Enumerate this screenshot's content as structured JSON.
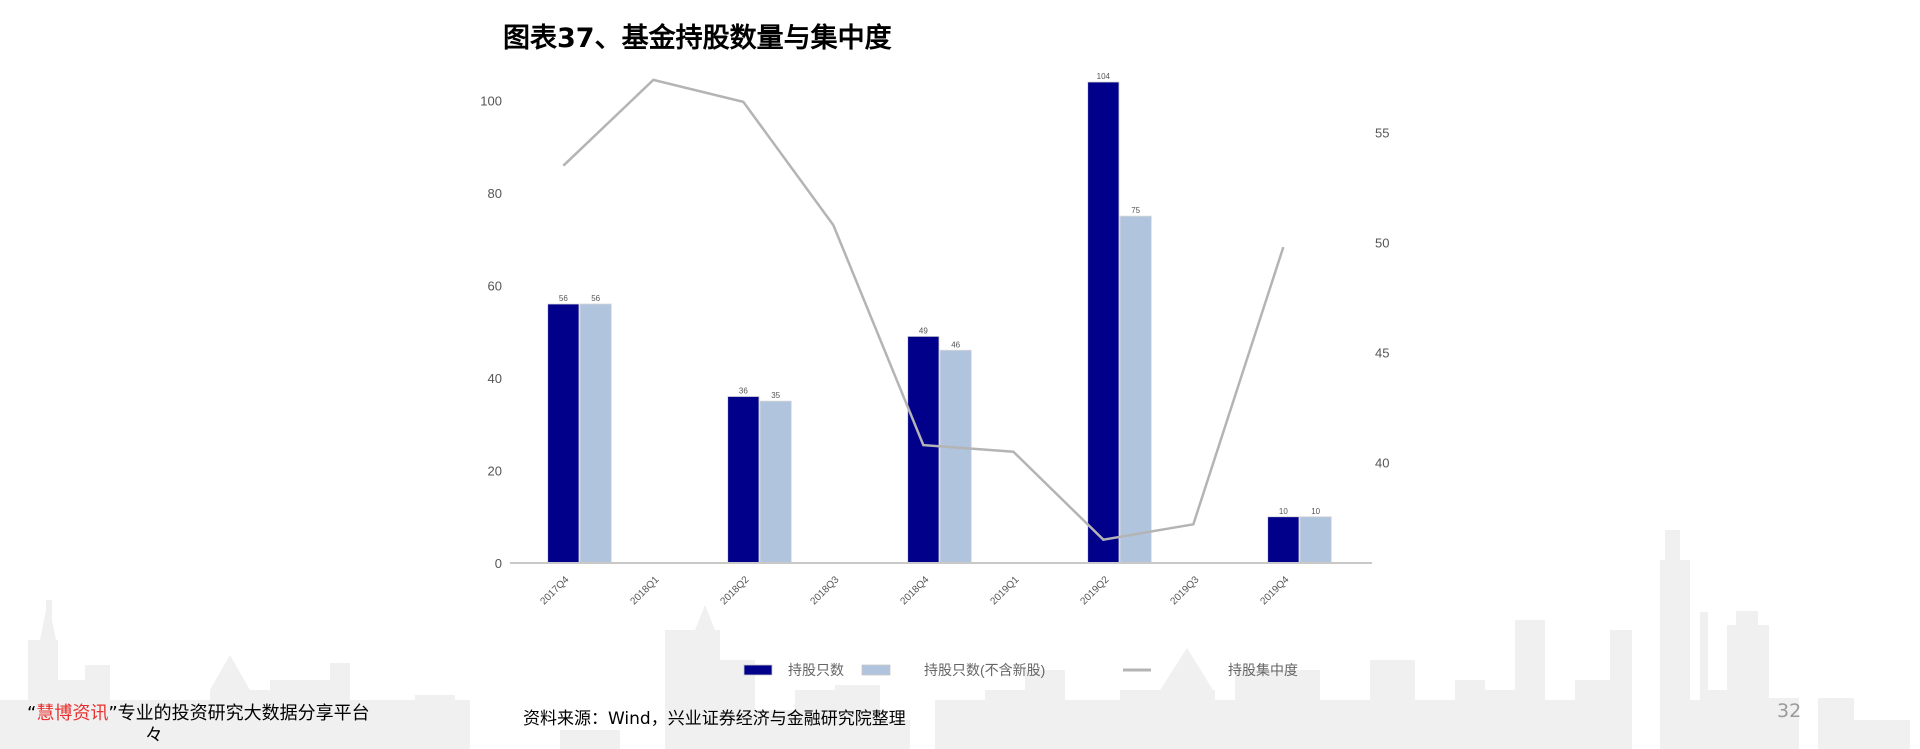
{
  "title": "图表37、基金持股数量与集中度",
  "chart_data": {
    "type": "bar",
    "title": "图表37、基金持股数量与集中度",
    "categories": [
      "2017Q4",
      "2018Q1",
      "2018Q2",
      "2018Q3",
      "2018Q4",
      "2019Q1",
      "2019Q2",
      "2019Q3",
      "2019Q4"
    ],
    "series": [
      {
        "name": "持股只数",
        "type": "bar",
        "axis": "left",
        "color": "#00008b",
        "values": [
          56,
          null,
          36,
          null,
          49,
          null,
          104,
          null,
          10
        ]
      },
      {
        "name": "持股只数(不含新股)",
        "type": "bar",
        "axis": "left",
        "color": "#b0c4de",
        "values": [
          56,
          null,
          35,
          null,
          46,
          null,
          75,
          null,
          10
        ]
      },
      {
        "name": "持股集中度",
        "type": "line",
        "axis": "right",
        "color": "#b4b4b4",
        "values": [
          53.5,
          57.4,
          56.4,
          50.8,
          40.8,
          40.5,
          36.5,
          37.2,
          49.8
        ]
      }
    ],
    "left_axis": {
      "ticks": [
        0,
        20,
        40,
        60,
        80,
        100
      ],
      "ylim": [
        0,
        104
      ]
    },
    "right_axis": {
      "ticks": [
        40,
        45,
        50,
        55
      ],
      "ylim": [
        35.7,
        57.5
      ]
    },
    "xlabel": "",
    "ylabel": "",
    "grid": false,
    "legend_position": "bottom"
  },
  "legend": [
    {
      "label": "持股只数",
      "kind": "bar",
      "color": "#00008b"
    },
    {
      "label": "持股只数(不含新股)",
      "kind": "bar",
      "color": "#b0c4de"
    },
    {
      "label": "持股集中度",
      "kind": "line",
      "color": "#b4b4b4"
    }
  ],
  "footer": {
    "brand_open_quote": "“",
    "brand": "慧博资讯",
    "brand_close_quote": "”",
    "tagline": "专业的投资研究大数据分享平台",
    "tagline_cont": "々",
    "source": "资料来源：Wind，兴业证券经济与金融研究院整理",
    "page_number": "32"
  }
}
